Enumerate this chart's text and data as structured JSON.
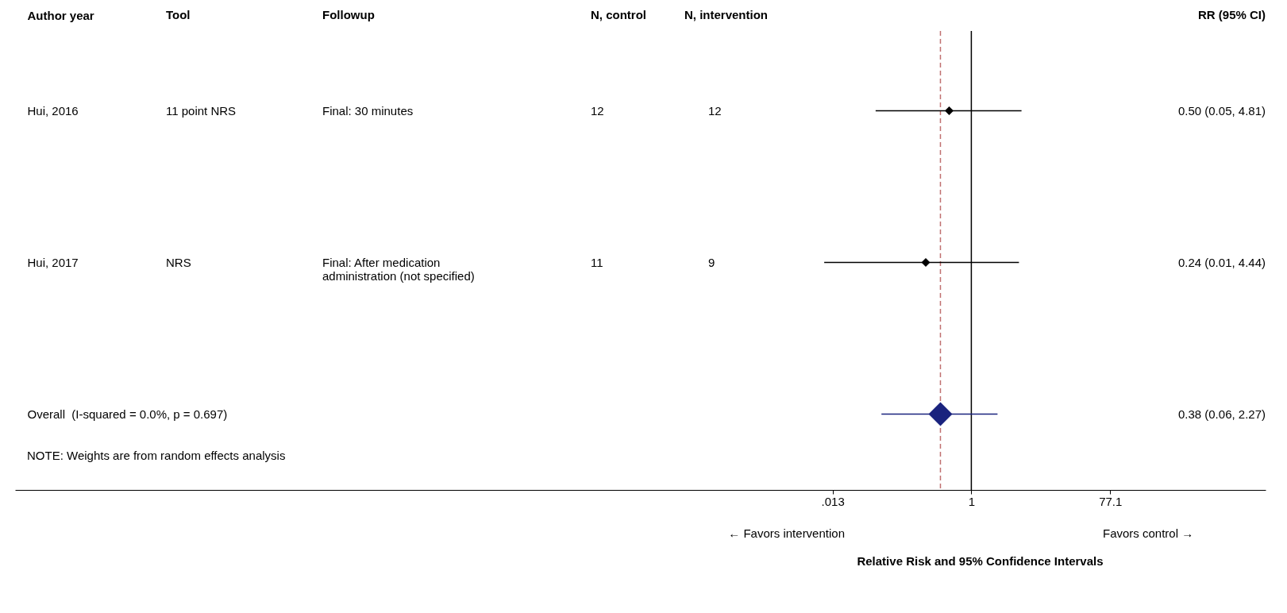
{
  "chart_data": {
    "type": "scatter",
    "orientation": "horizontal",
    "ylabel": "Author year",
    "y2label": "RR (95% CI)",
    "xlabel": "Relative Risk and 95% Confidence Intervals",
    "categories": [
      "Hui, 2016",
      "Hui, 2017",
      "Overall  (I-squared = 0.0%, p = 0.697)"
    ],
    "series": [
      {
        "color": "#000000",
        "values": [
          0.5,
          0.24,
          null
        ],
        "errors": [
          [
            0.05,
            4.81
          ],
          [
            0.01,
            4.44
          ],
          null
        ]
      },
      {
        "color": "#1a237e",
        "values": [
          null,
          null,
          0.38
        ],
        "errors": [
          null,
          null,
          [
            0.06,
            2.27
          ]
        ]
      }
    ],
    "log": "x",
    "xlim": [
      1e-13,
      10000
    ],
    "xticks": [
      {
        "value": 0.013,
        "label": ".013"
      },
      1,
      77.1
    ],
    "ref_lines": [
      {
        "axis": "x",
        "value": 1,
        "color": "#000000",
        "line_style": "solid"
      },
      {
        "axis": "x",
        "value": 0.38,
        "color": "#c07070",
        "line_style": "dashed"
      }
    ],
    "marker": "diamond",
    "grid": false,
    "annotations": [
      "Tool",
      "Followup",
      "N, control",
      "N, intervention",
      "11 point NRS",
      "Final: 30 minutes",
      "12",
      "12",
      "NRS",
      "Final: After medication administration (not specified)",
      "11",
      "9",
      "0.50 (0.05, 4.81)",
      "0.24 (0.01, 4.44)",
      "0.38 (0.06, 2.27)",
      "NOTE: Weights are from random effects analysis",
      "← Favors intervention",
      "Favors control →"
    ]
  }
}
